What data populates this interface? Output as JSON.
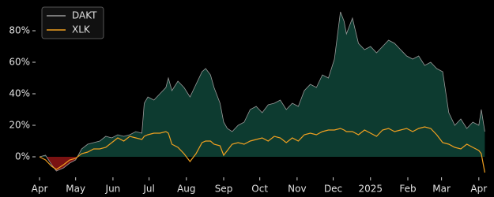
{
  "chart_data": {
    "type": "line",
    "x": [
      0,
      5,
      10,
      14,
      20,
      25,
      30,
      35,
      40,
      45,
      50,
      55,
      60,
      65,
      70,
      75,
      80,
      85,
      87,
      90,
      95,
      100,
      105,
      107,
      110,
      115,
      120,
      125,
      130,
      135,
      138,
      142,
      145,
      150,
      153,
      156,
      160,
      165,
      170,
      175,
      180,
      185,
      190,
      195,
      200,
      205,
      210,
      215,
      220,
      225,
      230,
      235,
      240,
      245,
      250,
      253,
      255,
      260,
      265,
      270,
      275,
      280,
      285,
      290,
      295,
      300,
      305,
      310,
      315,
      320,
      325,
      330,
      335,
      340,
      345,
      350,
      355,
      360,
      365,
      367,
      370
    ],
    "series": [
      {
        "name": "DAKT",
        "color": "#9a9a9a",
        "fill": "#0d3b30",
        "negative_fill": "#7a1212",
        "values": [
          0,
          1,
          -5,
          -9,
          -7,
          -4,
          -2,
          5,
          8,
          9,
          10,
          13,
          12,
          14,
          13,
          14,
          16,
          15,
          34,
          38,
          36,
          40,
          44,
          50,
          42,
          48,
          44,
          38,
          46,
          54,
          56,
          52,
          44,
          34,
          22,
          18,
          16,
          20,
          22,
          30,
          32,
          28,
          33,
          34,
          36,
          30,
          34,
          32,
          42,
          46,
          44,
          52,
          50,
          62,
          92,
          86,
          78,
          88,
          72,
          68,
          70,
          66,
          70,
          74,
          72,
          68,
          64,
          62,
          64,
          58,
          60,
          56,
          54,
          28,
          20,
          24,
          18,
          22,
          20,
          30,
          16
        ]
      },
      {
        "name": "XLK",
        "color": "#f0a020",
        "values": [
          0,
          -2,
          -6,
          -8,
          -5,
          -2,
          -1,
          2,
          3,
          5,
          5,
          6,
          9,
          12,
          10,
          13,
          12,
          11,
          13,
          14,
          15,
          15,
          16,
          15,
          8,
          6,
          2,
          -3,
          2,
          9,
          10,
          10,
          8,
          7,
          1,
          4,
          8,
          9,
          8,
          10,
          11,
          12,
          10,
          13,
          12,
          9,
          12,
          10,
          14,
          15,
          14,
          16,
          17,
          17,
          18,
          17,
          16,
          16,
          14,
          17,
          15,
          13,
          17,
          18,
          16,
          17,
          18,
          16,
          18,
          19,
          18,
          14,
          9,
          8,
          6,
          5,
          8,
          6,
          4,
          2,
          -10
        ]
      }
    ],
    "xlim": [
      -3.3,
      373
    ],
    "xticks": [
      {
        "value": 0,
        "label": "Apr"
      },
      {
        "value": 30,
        "label": "May"
      },
      {
        "value": 61,
        "label": "Jun"
      },
      {
        "value": 91,
        "label": "Jul"
      },
      {
        "value": 122,
        "label": "Aug"
      },
      {
        "value": 153,
        "label": "Sep"
      },
      {
        "value": 183,
        "label": "Oct"
      },
      {
        "value": 214,
        "label": "Nov"
      },
      {
        "value": 244,
        "label": "Dec"
      },
      {
        "value": 275,
        "label": "2025"
      },
      {
        "value": 306,
        "label": "Feb"
      },
      {
        "value": 334,
        "label": "Mar"
      },
      {
        "value": 365,
        "label": "Apr"
      }
    ],
    "ylim": [
      -13,
      97
    ],
    "yticks": [
      {
        "value": 0,
        "label": "0%"
      },
      {
        "value": 20,
        "label": "20%"
      },
      {
        "value": 40,
        "label": "40%"
      },
      {
        "value": 60,
        "label": "60%"
      },
      {
        "value": 80,
        "label": "80%"
      }
    ],
    "legend": "upper left"
  }
}
